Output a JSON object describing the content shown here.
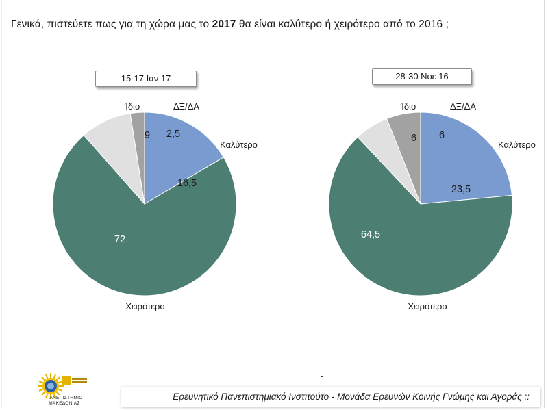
{
  "question": {
    "part1": "Γενικά, πιστεύετε πως για τη χώρα μας το ",
    "bold": "2017",
    "part2": " θα είναι καλύτερο ή χειρότερο από το 2016 ;"
  },
  "colors": {
    "better": "#7a9bcf",
    "worse": "#4c7e72",
    "same": "#e0e0e0",
    "dk_na": "#a2a2a2"
  },
  "chart_data": [
    {
      "type": "pie",
      "title": "15-17 Ιαν 17",
      "slices": [
        {
          "label": "Καλύτερο",
          "value": 16.5,
          "display": "16,5"
        },
        {
          "label": "Χειρότερο",
          "value": 72,
          "display": "72"
        },
        {
          "label": "Ίδιο",
          "value": 9,
          "display": "9"
        },
        {
          "label": "ΔΞ/ΔΑ",
          "value": 2.5,
          "display": "2,5"
        }
      ]
    },
    {
      "type": "pie",
      "title": "28-30 Νοε 16",
      "slices": [
        {
          "label": "Καλύτερο",
          "value": 23.5,
          "display": "23,5"
        },
        {
          "label": "Χειρότερο",
          "value": 64.5,
          "display": "64,5"
        },
        {
          "label": "Ίδιο",
          "value": 6,
          "display": "6"
        },
        {
          "label": "ΔΞ/ΔΑ",
          "value": 6,
          "display": "6"
        }
      ]
    }
  ],
  "footer": "Ερευνητικό Πανεπιστημιακό Ινστιτούτο - Μονάδα Ερευνών Κοινής Γνώμης και Αγοράς ::",
  "logo": {
    "line1": "ΠΑΝΕΠΙΣΤΗΜΙΟ",
    "line2": "ΜΑΚΕΔΟΝΙΑΣ",
    "icon": "university-of-macedonia-logo-icon"
  }
}
